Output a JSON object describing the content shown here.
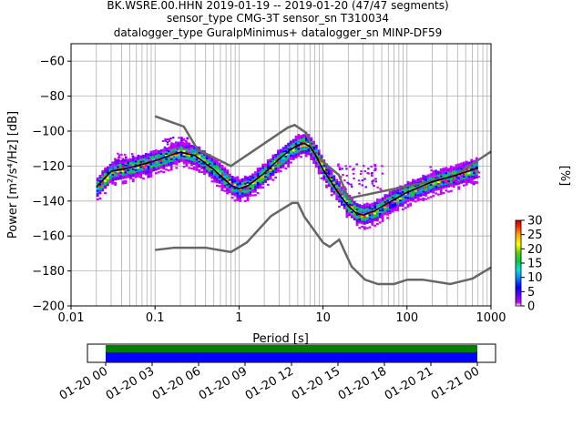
{
  "chart_data": {
    "type": "heatmap",
    "title_lines": [
      "BK.WSRE.00.HHN   2019-01-19 -- 2019-01-20  (47/47 segments)",
      "sensor_type CMG-3T sensor_sn T310034",
      "datalogger_type GuralpMinimus+ datalogger_sn MINP-DF59"
    ],
    "xlabel": "Period [s]",
    "ylabel": "Power [m²/s⁴/Hz] [dB]",
    "x_scale": "log",
    "xlim": [
      0.01,
      1000
    ],
    "ylim": [
      -200,
      -50
    ],
    "x_ticks": [
      {
        "v": 0.01,
        "label": "0.01"
      },
      {
        "v": 0.1,
        "label": "0.1"
      },
      {
        "v": 1,
        "label": "1"
      },
      {
        "v": 10,
        "label": "10"
      },
      {
        "v": 100,
        "label": "100"
      },
      {
        "v": 1000,
        "label": "1000"
      }
    ],
    "y_ticks": [
      {
        "v": -60,
        "label": "−60"
      },
      {
        "v": -80,
        "label": "−80"
      },
      {
        "v": -100,
        "label": "−100"
      },
      {
        "v": -120,
        "label": "−120"
      },
      {
        "v": -140,
        "label": "−140"
      },
      {
        "v": -160,
        "label": "−160"
      },
      {
        "v": -180,
        "label": "−180"
      },
      {
        "v": -200,
        "label": "−200"
      }
    ],
    "grid": true,
    "colorbar": {
      "label": "[%]",
      "range": [
        0,
        30
      ],
      "ticks": [
        "0",
        "5",
        "10",
        "15",
        "20",
        "25",
        "30"
      ]
    },
    "nhnm": [
      [
        0.1,
        -91.5
      ],
      [
        0.22,
        -97.4
      ],
      [
        0.32,
        -110.5
      ],
      [
        0.8,
        -120
      ],
      [
        3.8,
        -98
      ],
      [
        4.6,
        -96.5
      ],
      [
        6.3,
        -101
      ],
      [
        7.9,
        -113.5
      ],
      [
        15.4,
        -125
      ],
      [
        20,
        -138.5
      ],
      [
        354.8,
        -126
      ],
      [
        10000,
        -80
      ]
    ],
    "nlnm": [
      [
        0.1,
        -168
      ],
      [
        0.17,
        -166.7
      ],
      [
        0.4,
        -166.7
      ],
      [
        0.8,
        -169.2
      ],
      [
        1.24,
        -163.7
      ],
      [
        2.4,
        -148.6
      ],
      [
        4.3,
        -141.1
      ],
      [
        5.0,
        -141.1
      ],
      [
        6.0,
        -149
      ],
      [
        10.0,
        -163.8
      ],
      [
        12.0,
        -166.2
      ],
      [
        15.6,
        -162.1
      ],
      [
        21.9,
        -177.5
      ],
      [
        31.6,
        -185
      ],
      [
        45,
        -187.5
      ],
      [
        70,
        -187.5
      ],
      [
        101,
        -185
      ],
      [
        154,
        -185
      ],
      [
        328,
        -187.5
      ],
      [
        600,
        -184.4
      ],
      [
        1000,
        -178
      ]
    ],
    "mode_curve": [
      [
        0.02,
        -132
      ],
      [
        0.03,
        -123
      ],
      [
        0.05,
        -121
      ],
      [
        0.1,
        -117
      ],
      [
        0.15,
        -114
      ],
      [
        0.2,
        -112
      ],
      [
        0.3,
        -114
      ],
      [
        0.5,
        -122
      ],
      [
        0.8,
        -131
      ],
      [
        1.0,
        -133
      ],
      [
        1.3,
        -131
      ],
      [
        2.0,
        -124
      ],
      [
        3.0,
        -116
      ],
      [
        4.0,
        -111
      ],
      [
        5.0,
        -108
      ],
      [
        6.0,
        -107
      ],
      [
        7.0,
        -109
      ],
      [
        8.0,
        -113
      ],
      [
        10,
        -122
      ],
      [
        15,
        -135
      ],
      [
        20,
        -143
      ],
      [
        25,
        -147
      ],
      [
        30,
        -148
      ],
      [
        40,
        -146
      ],
      [
        60,
        -141
      ],
      [
        100,
        -135
      ],
      [
        200,
        -129
      ],
      [
        400,
        -125
      ],
      [
        700,
        -121
      ]
    ],
    "time_axis": {
      "ticks": [
        "01-20 00",
        "01-20 03",
        "01-20 06",
        "01-20 09",
        "01-20 12",
        "01-20 15",
        "01-20 18",
        "01-20 21",
        "01-21 00"
      ],
      "coverage_start_hours": 0,
      "coverage_end_hours": 24,
      "span_hours": 24
    }
  },
  "colors": {
    "noise_models": "#666666",
    "mode": "#000000",
    "coverage_top": "#008000",
    "coverage_bottom": "#0000ff"
  }
}
